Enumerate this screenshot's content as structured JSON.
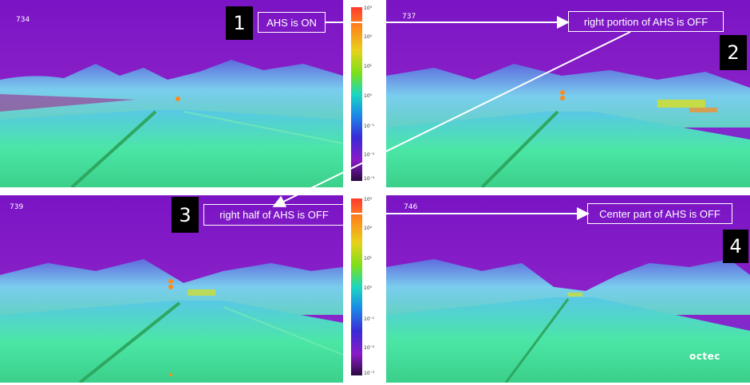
{
  "panels": [
    {
      "frame": "734",
      "label": "1",
      "callout": "AHS is ON"
    },
    {
      "frame": "737",
      "label": "2",
      "callout": "right portion of AHS is OFF"
    },
    {
      "frame": "739",
      "label": "3",
      "callout": "right half of AHS is OFF"
    },
    {
      "frame": "746",
      "label": "4",
      "callout": "Center part of AHS is OFF"
    }
  ],
  "colorbar": {
    "ticks": [
      "10³",
      "10²",
      "10¹",
      "10⁰",
      "10⁻¹",
      "10⁻²",
      "10⁻³"
    ]
  },
  "logo": "octec",
  "colors": {
    "sky": "#8a1fc6",
    "road": "#4ef08a",
    "trees": "#6fd8f0",
    "label_bg": "#000000",
    "callout_border": "#ffffff"
  }
}
